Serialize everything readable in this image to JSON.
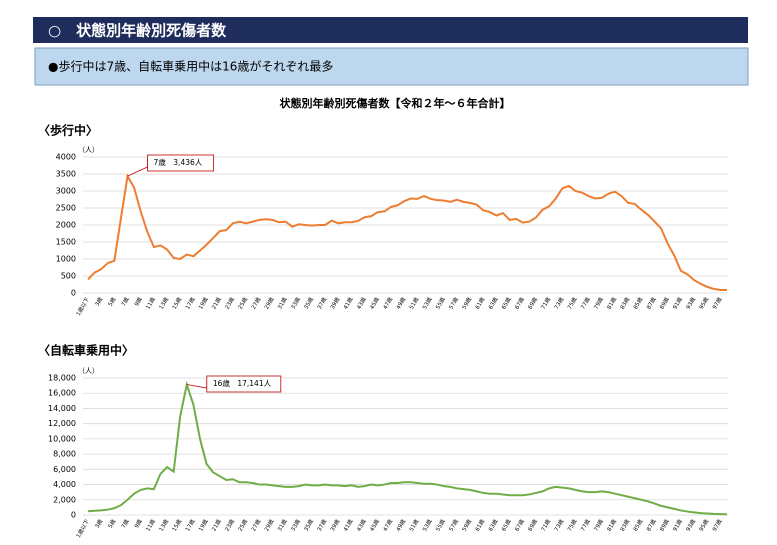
{
  "header": {
    "title": "○　状態別年齢別死傷者数"
  },
  "note": "●歩行中は7歳、自転車乗用中は16歳がそれぞれ最多",
  "figure_title": "状態別年齢別死傷者数【令和２年～６年合計】",
  "chart_data": [
    {
      "type": "line",
      "title": "〈歩行中〉",
      "y_unit": "（人）",
      "categories": [
        "1歳以下",
        null,
        "3歳",
        null,
        "5歳",
        null,
        "7歳",
        null,
        "9歳",
        null,
        "11歳",
        null,
        "13歳",
        null,
        "15歳",
        null,
        "17歳",
        null,
        "19歳",
        null,
        "21歳",
        null,
        "23歳",
        null,
        "25歳",
        null,
        "27歳",
        null,
        "29歳",
        null,
        "31歳",
        null,
        "33歳",
        null,
        "35歳",
        null,
        "37歳",
        null,
        "39歳",
        null,
        "41歳",
        null,
        "43歳",
        null,
        "45歳",
        null,
        "47歳",
        null,
        "49歳",
        null,
        "51歳",
        null,
        "53歳",
        null,
        "55歳",
        null,
        "57歳",
        null,
        "59歳",
        null,
        "61歳",
        null,
        "63歳",
        null,
        "65歳",
        null,
        "67歳",
        null,
        "69歳",
        null,
        "71歳",
        null,
        "73歳",
        null,
        "75歳",
        null,
        "77歳",
        null,
        "79歳",
        null,
        "81歳",
        null,
        "83歳",
        null,
        "85歳",
        null,
        "87歳",
        null,
        "89歳",
        null,
        "91歳",
        null,
        "93歳",
        null,
        "95歳",
        null,
        "97歳",
        null
      ],
      "series": [
        {
          "name": "歩行中",
          "color": "#ed7d31",
          "values": [
            400,
            600,
            700,
            880,
            950,
            2200,
            3436,
            3100,
            2400,
            1800,
            1350,
            1400,
            1280,
            1030,
            1000,
            1130,
            1080,
            1250,
            1420,
            1620,
            1820,
            1850,
            2050,
            2100,
            2050,
            2100,
            2150,
            2170,
            2150,
            2080,
            2100,
            1950,
            2020,
            2000,
            1980,
            2000,
            2000,
            2130,
            2050,
            2080,
            2080,
            2120,
            2230,
            2260,
            2380,
            2400,
            2530,
            2580,
            2700,
            2780,
            2770,
            2850,
            2770,
            2730,
            2720,
            2680,
            2740,
            2680,
            2650,
            2600,
            2430,
            2380,
            2280,
            2350,
            2150,
            2180,
            2070,
            2100,
            2220,
            2450,
            2550,
            2780,
            3080,
            3150,
            3000,
            2950,
            2850,
            2780,
            2800,
            2920,
            2980,
            2850,
            2650,
            2620,
            2450,
            2300,
            2100,
            1900,
            1450,
            1100,
            650,
            550,
            380,
            270,
            180,
            120,
            90,
            90
          ]
        }
      ],
      "annotation": {
        "index": 6,
        "text": "7歳　3,436人"
      },
      "ylim": [
        0,
        4000
      ],
      "yticks": [
        0,
        500,
        1000,
        1500,
        2000,
        2500,
        3000,
        3500,
        4000
      ],
      "grid": true
    },
    {
      "type": "line",
      "title": "〈自転車乗用中〉",
      "y_unit": "（人）",
      "categories": [
        "1歳以下",
        null,
        "3歳",
        null,
        "5歳",
        null,
        "7歳",
        null,
        "9歳",
        null,
        "11歳",
        null,
        "13歳",
        null,
        "15歳",
        null,
        "17歳",
        null,
        "19歳",
        null,
        "21歳",
        null,
        "23歳",
        null,
        "25歳",
        null,
        "27歳",
        null,
        "29歳",
        null,
        "31歳",
        null,
        "33歳",
        null,
        "35歳",
        null,
        "37歳",
        null,
        "39歳",
        null,
        "41歳",
        null,
        "43歳",
        null,
        "45歳",
        null,
        "47歳",
        null,
        "49歳",
        null,
        "51歳",
        null,
        "53歳",
        null,
        "55歳",
        null,
        "57歳",
        null,
        "59歳",
        null,
        "61歳",
        null,
        "63歳",
        null,
        "65歳",
        null,
        "67歳",
        null,
        "69歳",
        null,
        "71歳",
        null,
        "73歳",
        null,
        "75歳",
        null,
        "77歳",
        null,
        "79歳",
        null,
        "81歳",
        null,
        "83歳",
        null,
        "85歳",
        null,
        "87歳",
        null,
        "89歳",
        null,
        "91歳",
        null,
        "93歳",
        null,
        "95歳",
        null,
        "97歳",
        null
      ],
      "series": [
        {
          "name": "自転車乗用中",
          "color": "#70ad47",
          "values": [
            500,
            550,
            600,
            700,
            900,
            1300,
            2000,
            2800,
            3300,
            3500,
            3400,
            5400,
            6300,
            5700,
            13000,
            17141,
            14500,
            10000,
            6700,
            5600,
            5100,
            4600,
            4700,
            4300,
            4300,
            4200,
            4000,
            4000,
            3900,
            3800,
            3700,
            3700,
            3800,
            4000,
            3900,
            3900,
            4000,
            3900,
            3900,
            3800,
            3900,
            3700,
            3800,
            4000,
            3900,
            4000,
            4200,
            4200,
            4300,
            4300,
            4200,
            4100,
            4100,
            4000,
            3800,
            3700,
            3500,
            3400,
            3300,
            3100,
            2900,
            2800,
            2800,
            2700,
            2600,
            2600,
            2600,
            2700,
            2900,
            3100,
            3500,
            3700,
            3600,
            3500,
            3300,
            3100,
            3000,
            3000,
            3100,
            3000,
            2800,
            2600,
            2400,
            2200,
            2000,
            1800,
            1500,
            1200,
            1000,
            800,
            600,
            450,
            350,
            250,
            200,
            150,
            120,
            100
          ]
        }
      ],
      "annotation": {
        "index": 15,
        "text": "16歳　17,141人"
      },
      "ylim": [
        0,
        18000
      ],
      "yticks": [
        0,
        {
          "value": 2000,
          "label": "2,000"
        },
        {
          "value": 4000,
          "label": "4,000"
        },
        {
          "value": 6000,
          "label": "6,000"
        },
        {
          "value": 8000,
          "label": "8,000"
        },
        {
          "value": 10000,
          "label": "10,000"
        },
        {
          "value": 12000,
          "label": "12,000"
        },
        {
          "value": 14000,
          "label": "14,000"
        },
        {
          "value": 16000,
          "label": "16,000"
        },
        {
          "value": 18000,
          "label": "18,000"
        }
      ],
      "grid": true
    }
  ]
}
